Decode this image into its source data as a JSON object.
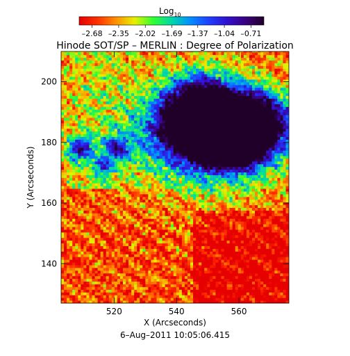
{
  "chart_data": {
    "type": "heatmap",
    "title": "Hinode SOT/SP – MERLIN : Degree of Polarization",
    "xlabel": "X (Arcseconds)",
    "ylabel": "Y (Arcseconds)",
    "footer": "6–Aug–2011  10:05:06.415",
    "xlim": [
      503,
      576
    ],
    "ylim": [
      127,
      210
    ],
    "x_ticks": [
      520,
      540,
      560
    ],
    "y_ticks": [
      140,
      160,
      180,
      200
    ],
    "x_tick_labels": [
      "520",
      "540",
      "560"
    ],
    "y_tick_labels": [
      "140",
      "160",
      "180",
      "200"
    ],
    "colorbar": {
      "label_main": "Log",
      "label_sub": "10",
      "scale": "log10",
      "range": [
        -2.84,
        -0.55
      ],
      "tick_labels": [
        "–2.68",
        "–2.35",
        "–2.02",
        "–1.69",
        "–1.37",
        "–1.04",
        "–0.71"
      ],
      "tick_values": [
        -2.68,
        -2.35,
        -2.02,
        -1.69,
        -1.37,
        -1.04,
        -0.71
      ],
      "colormap": [
        "#e60000",
        "#ff3000",
        "#ff9000",
        "#e8f000",
        "#30ff30",
        "#00d8a8",
        "#0090ff",
        "#2040ff",
        "#3010d0",
        "#3a0080",
        "#200028"
      ]
    },
    "features": [
      {
        "name": "polarized region (sunspot penumbra/umbra)",
        "x_range": [
          527,
          576
        ],
        "y_range": [
          160,
          203
        ],
        "peak_log10": -0.71
      },
      {
        "name": "weak-field area",
        "x_range": [
          545,
          576
        ],
        "y_range": [
          127,
          155
        ],
        "approx_log10": -2.6
      }
    ]
  }
}
